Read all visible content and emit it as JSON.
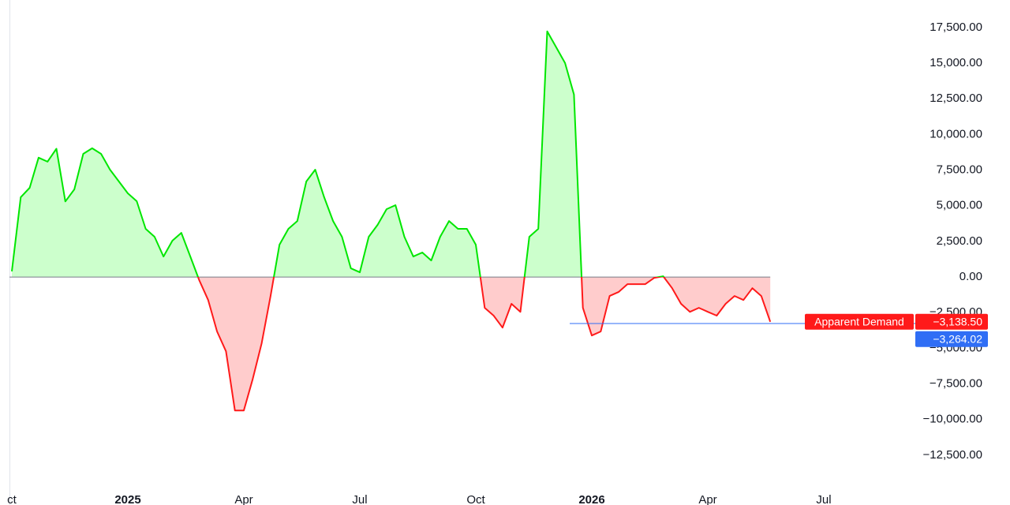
{
  "chart_data": {
    "type": "line",
    "categories": [
      "ct",
      null,
      null,
      null,
      null,
      null,
      null,
      null,
      null,
      null,
      null,
      null,
      null,
      "2025",
      null,
      null,
      null,
      null,
      null,
      null,
      null,
      null,
      null,
      null,
      null,
      null,
      "Apr",
      null,
      null,
      null,
      null,
      null,
      null,
      null,
      null,
      null,
      null,
      null,
      null,
      "Jul",
      null,
      null,
      null,
      null,
      null,
      null,
      null,
      null,
      null,
      null,
      null,
      null,
      "Oct",
      null,
      null,
      null,
      null,
      null,
      null,
      null,
      null,
      null,
      null,
      null,
      null,
      "2026",
      null,
      null,
      null,
      null,
      null,
      null,
      null,
      null,
      null,
      null,
      null,
      null,
      "Apr",
      null,
      null,
      null,
      null,
      null,
      null,
      null,
      null,
      null,
      null,
      null,
      null,
      "Jul"
    ],
    "series": [
      {
        "name": "Apparent Demand",
        "color": "#00e600",
        "negative_color": "#ff1a1a",
        "fill_color": "#ccffcc",
        "negative_fill_color": "#ffcccc",
        "values": [
          400,
          5600,
          6260,
          8370,
          8090,
          9000,
          5300,
          6150,
          8640,
          9030,
          8640,
          7530,
          6700,
          5870,
          5320,
          3380,
          2820,
          1440,
          2550,
          3100,
          1440,
          -220,
          -1610,
          -3820,
          -5210,
          -9360,
          -9360,
          -7150,
          -4650,
          -1330,
          2270,
          3380,
          3930,
          6700,
          7530,
          5600,
          3930,
          2820,
          610,
          330,
          2820,
          3660,
          4760,
          5040,
          2820,
          1440,
          1720,
          1160,
          2820,
          3930,
          3380,
          3380,
          2270,
          -2160,
          -2710,
          -3550,
          -1880,
          -2440,
          2820,
          3380,
          17230,
          16120,
          15010,
          12800,
          -2160,
          -4100,
          -3820,
          -1330,
          -1050,
          -500,
          -500,
          -500,
          -55,
          55,
          -780,
          -1880,
          -2440,
          -2160,
          -2440,
          -2710,
          -1880,
          -1330,
          -1610,
          -780,
          -1330,
          -3138.5,
          null,
          null,
          null,
          null,
          null,
          null
        ],
        "value_labels": [
          null,
          null,
          null,
          null,
          null,
          null,
          null,
          null,
          null,
          null,
          null,
          null,
          null,
          null,
          null,
          null,
          null,
          null,
          null,
          null,
          null,
          null,
          null,
          null,
          null,
          null,
          null,
          null,
          null,
          null,
          null,
          null,
          null,
          null,
          null,
          null,
          null,
          null,
          null,
          null,
          null,
          null,
          null,
          null,
          null,
          null,
          null,
          null,
          null,
          null,
          null,
          null,
          null,
          null,
          null,
          null,
          null,
          null,
          null,
          null,
          null,
          null,
          null,
          null,
          null,
          null,
          null,
          null,
          null,
          null,
          null,
          null,
          null,
          null,
          null,
          null,
          null,
          null,
          null,
          null,
          null,
          null,
          null,
          null,
          null,
          "−3,138.50",
          null,
          null,
          null,
          null,
          null,
          null
        ]
      }
    ],
    "reference_line": {
      "value": -3264.02,
      "label": "−3,264.02",
      "color": "#2f6ef5"
    },
    "ylim": [
      -15990,
      19430
    ],
    "yticks": [
      {
        "value": 17500,
        "label": "17,500.00"
      },
      {
        "value": 15000,
        "label": "15,000.00"
      },
      {
        "value": 12500,
        "label": "12,500.00"
      },
      {
        "value": 10000,
        "label": "10,000.00"
      },
      {
        "value": 7500,
        "label": "7,500.00"
      },
      {
        "value": 5000,
        "label": "5,000.00"
      },
      {
        "value": 2500,
        "label": "2,500.00"
      },
      {
        "value": 0,
        "label": "0.00"
      },
      {
        "value": -2500,
        "label": "−2,500.00"
      },
      {
        "value": -5000,
        "label": "−5,000.00"
      },
      {
        "value": -7500,
        "label": "−7,500.00"
      },
      {
        "value": -10000,
        "label": "−10,000.00"
      },
      {
        "value": -12500,
        "label": "−12,500.00"
      }
    ],
    "grid": false
  }
}
